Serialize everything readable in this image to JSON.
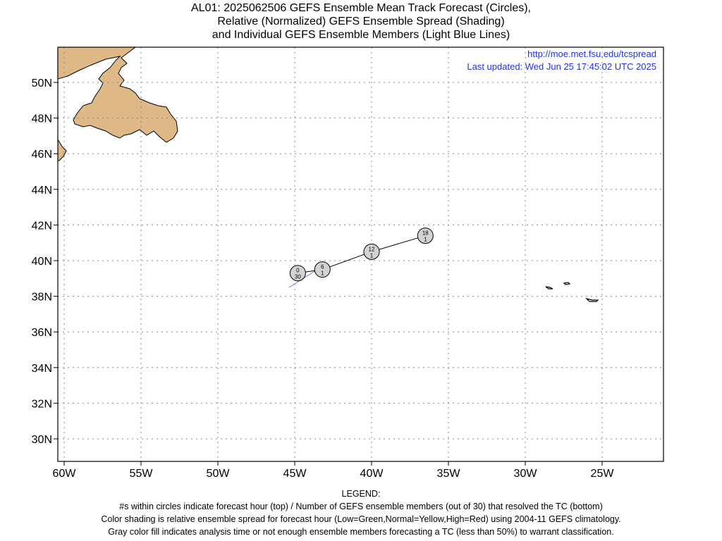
{
  "title": {
    "line1": "AL01: 2025062506 GEFS Ensemble Mean Track Forecast (Circles),",
    "line2": "Relative (Normalized) GEFS Ensemble Spread (Shading)",
    "line3": "and Individual GEFS Ensemble Members (Light Blue Lines)"
  },
  "info": {
    "url": "http://moe.met.fsu.edu/tcspread",
    "updated": "Last updated: Wed Jun 25 17:45:02 UTC 2025"
  },
  "axes": {
    "lat_labels": [
      "30N",
      "32N",
      "34N",
      "36N",
      "38N",
      "40N",
      "42N",
      "44N",
      "46N",
      "48N",
      "50N"
    ],
    "lon_labels": [
      "60W",
      "55W",
      "50W",
      "45W",
      "40W",
      "35W",
      "30W",
      "25W"
    ]
  },
  "track": [
    {
      "hour": "0",
      "members": "30",
      "lon": -44.8,
      "lat": 39.3
    },
    {
      "hour": "6",
      "members": "1",
      "lon": -43.2,
      "lat": 39.5
    },
    {
      "hour": "12",
      "members": "1",
      "lon": -40.0,
      "lat": 40.5
    },
    {
      "hour": "18",
      "members": "1",
      "lon": -36.5,
      "lat": 41.4
    }
  ],
  "legend": {
    "heading": "LEGEND:",
    "line1": "#s within circles indicate forecast hour (top) / Number of GEFS ensemble members (out of 30) that resolved the TC (bottom)",
    "line2": "Color shading is relative ensemble spread for forecast hour (Low=Green,Normal=Yellow,High=Red) using 2004-11 GEFS climatology.",
    "line3": "Gray color fill indicates analysis time or not enough ensemble members forecasting a TC (less than 50%) to warrant classification."
  },
  "colors": {
    "land": "#deb887",
    "circle_fill": "#d3d3d3",
    "member_line": "#6677ee",
    "info_text": "#2233dd"
  }
}
